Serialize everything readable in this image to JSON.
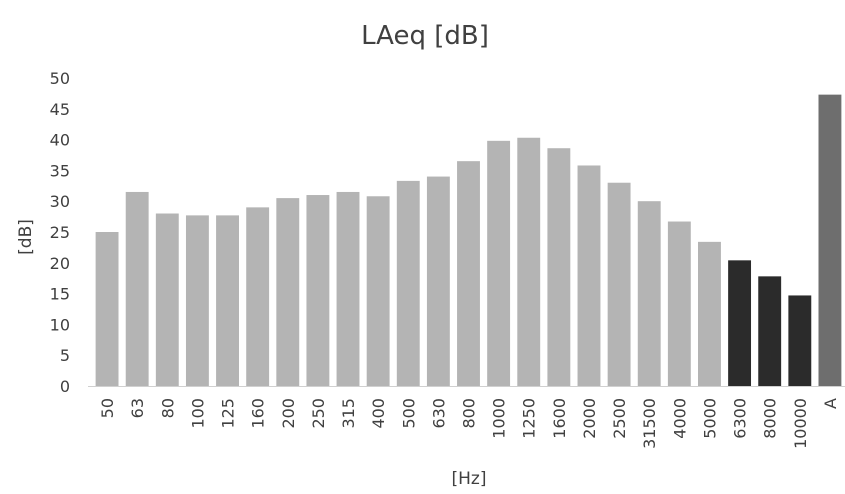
{
  "chart_data": {
    "type": "bar",
    "title": "LAeq [dB]",
    "xlabel": "[Hz]",
    "ylabel": "[dB]",
    "ylim": [
      0,
      50
    ],
    "yticks": [
      0,
      5,
      10,
      15,
      20,
      25,
      30,
      35,
      40,
      45,
      50
    ],
    "grid": false,
    "legend": "none",
    "categories": [
      "50",
      "63",
      "80",
      "100",
      "125",
      "160",
      "200",
      "250",
      "315",
      "400",
      "500",
      "630",
      "800",
      "1000",
      "1250",
      "1600",
      "2000",
      "2500",
      "31500",
      "4000",
      "5000",
      "6300",
      "8000",
      "10000",
      "A"
    ],
    "values": [
      25,
      31.5,
      28,
      27.7,
      27.7,
      29,
      30.5,
      31,
      31.5,
      30.8,
      33.3,
      34,
      36.5,
      39.8,
      40.3,
      38.6,
      35.8,
      33,
      30,
      26.7,
      23.4,
      20.4,
      17.8,
      14.7,
      47.3
    ],
    "bar_colors": [
      "#b4b4b4",
      "#b4b4b4",
      "#b4b4b4",
      "#b4b4b4",
      "#b4b4b4",
      "#b4b4b4",
      "#b4b4b4",
      "#b4b4b4",
      "#b4b4b4",
      "#b4b4b4",
      "#b4b4b4",
      "#b4b4b4",
      "#b4b4b4",
      "#b4b4b4",
      "#b4b4b4",
      "#b4b4b4",
      "#b4b4b4",
      "#b4b4b4",
      "#b4b4b4",
      "#b4b4b4",
      "#b4b4b4",
      "#2b2b2b",
      "#2b2b2b",
      "#2b2b2b",
      "#6e6e6e"
    ]
  }
}
